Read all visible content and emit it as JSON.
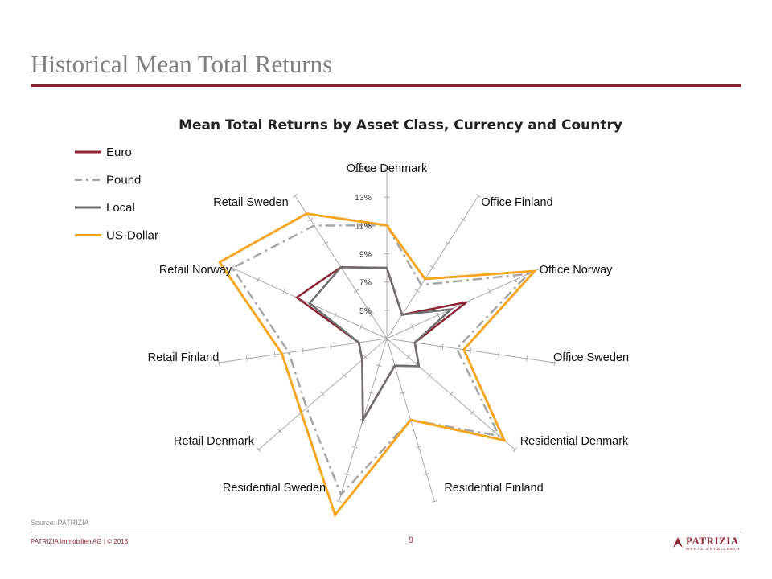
{
  "page": {
    "title": "Historical Mean Total Returns",
    "source": "Source: PATRIZIA",
    "footer_left": "PATRIZIA Immobilien AG | © 2013",
    "page_number": "9",
    "logo_text": "PATRIZIA",
    "logo_subtext": "WERTE ENTWICKELN",
    "accent_color": "#8b2535"
  },
  "chart_data": {
    "type": "radar",
    "title": "Mean Total Returns by Asset Class, Currency and Country",
    "categories": [
      "Office Denmark",
      "Office Finland",
      "Office Norway",
      "Office Sweden",
      "Residential Denmark",
      "Residential Finland",
      "Residential Sweden",
      "Retail Denmark",
      "Retail Finland",
      "Retail Norway",
      "Retail Sweden"
    ],
    "radial_ticks": [
      "5%",
      "7%",
      "9%",
      "11%",
      "13%",
      "15%"
    ],
    "rlim": [
      3,
      15
    ],
    "legend_position": "top-left",
    "series": [
      {
        "name": "Euro",
        "color": "#8b2535",
        "dash": "solid",
        "values": [
          8.0,
          5.0,
          9.2,
          5.0,
          6.0,
          5.0,
          9.0,
          5.3,
          5.0,
          10.0,
          9.0
        ]
      },
      {
        "name": "Pound",
        "color": "#a6a6a6",
        "dash": "dash-dot",
        "values": [
          11.0,
          7.5,
          14.0,
          8.0,
          13.5,
          9.0,
          14.5,
          10.5,
          10.0,
          15.0,
          12.5
        ]
      },
      {
        "name": "Local",
        "color": "#6e6e6e",
        "dash": "solid",
        "values": [
          8.0,
          5.0,
          8.0,
          5.0,
          6.0,
          5.0,
          9.0,
          5.3,
          5.0,
          9.0,
          9.0
        ]
      },
      {
        "name": "US-Dollar",
        "color": "#f5a623",
        "dash": "solid",
        "values": [
          11.0,
          8.0,
          14.5,
          8.5,
          14.0,
          9.0,
          16.0,
          11.0,
          10.5,
          16.0,
          13.5
        ]
      }
    ]
  }
}
